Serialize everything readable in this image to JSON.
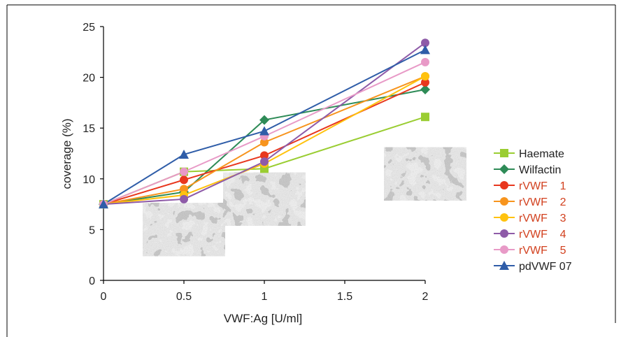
{
  "chart_data": {
    "type": "line",
    "xlabel": "VWF:Ag [U/ml]",
    "ylabel": "coverage (%)",
    "x": [
      0,
      0.5,
      1,
      2
    ],
    "xlim": [
      0,
      2
    ],
    "ylim": [
      0,
      25
    ],
    "xticks": [
      "0",
      "0.5",
      "1",
      "1.5",
      "2"
    ],
    "yticks": [
      "0",
      "5",
      "10",
      "15",
      "20",
      "25"
    ],
    "grid": false,
    "legend_position": "right",
    "series": [
      {
        "name": "Haemate",
        "color": "#9ACD32",
        "marker": "square",
        "values": [
          7.5,
          10.7,
          11.0,
          16.1
        ]
      },
      {
        "name": "Wilfactin",
        "color": "#2E8B57",
        "marker": "diamond",
        "values": [
          7.5,
          8.7,
          15.8,
          18.8
        ]
      },
      {
        "name": "rVWF    1",
        "color": "#E8371E",
        "marker": "circle",
        "values": [
          7.5,
          9.9,
          12.3,
          19.5
        ]
      },
      {
        "name": "rVWF    2",
        "color": "#F7941D",
        "marker": "circle",
        "values": [
          7.5,
          9.0,
          13.6,
          20.1
        ]
      },
      {
        "name": "rVWF    3",
        "color": "#FFC20E",
        "marker": "circle",
        "values": [
          7.5,
          8.4,
          11.5,
          20.1
        ]
      },
      {
        "name": "rVWF    4",
        "color": "#8E5BA8",
        "marker": "circle",
        "values": [
          7.5,
          8.0,
          11.7,
          23.4
        ]
      },
      {
        "name": "rVWF    5",
        "color": "#E89AC7",
        "marker": "circle",
        "values": [
          7.5,
          10.7,
          14.2,
          21.5
        ]
      },
      {
        "name": "pdVWF 07",
        "color": "#2F5DA8",
        "marker": "triangle",
        "values": [
          7.5,
          12.4,
          14.7,
          22.7
        ]
      }
    ],
    "legend_label_colors": {
      "Haemate": "#222222",
      "Wilfactin": "#222222",
      "rVWF    1": "#D2401E",
      "rVWF    2": "#D2401E",
      "rVWF    3": "#D2401E",
      "rVWF    4": "#D2401E",
      "rVWF    5": "#D2401E",
      "pdVWF 07": "#222222"
    },
    "micrograph_insets": [
      {
        "x": 0.5,
        "y": 5.0
      },
      {
        "x": 1.0,
        "y": 8.0
      },
      {
        "x": 2.0,
        "y": 10.5
      }
    ]
  }
}
